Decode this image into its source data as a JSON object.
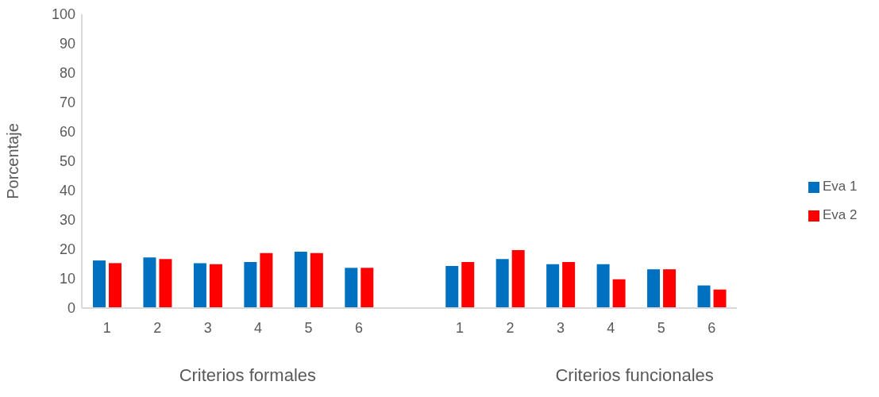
{
  "chart_data": {
    "type": "bar",
    "ylabel": "Porcentaje",
    "categories": [
      "1",
      "2",
      "3",
      "4",
      "5",
      "6",
      null,
      "1",
      "2",
      "3",
      "4",
      "5",
      "6"
    ],
    "series": [
      {
        "name": "Eva 1",
        "color": "#0070c0",
        "values": [
          16.2,
          17.2,
          15.3,
          15.7,
          19.2,
          13.7,
          null,
          14.3,
          16.7,
          14.9,
          14.9,
          13.2,
          7.7
        ]
      },
      {
        "name": "Eva 2",
        "color": "#ff0000",
        "values": [
          15.3,
          16.7,
          14.9,
          18.7,
          18.7,
          13.7,
          null,
          15.7,
          19.7,
          15.7,
          9.8,
          13.2,
          6.3
        ]
      }
    ],
    "ylim": [
      0,
      100
    ],
    "yticks": [
      0,
      10,
      20,
      30,
      40,
      50,
      60,
      70,
      80,
      90,
      100
    ],
    "grid": false,
    "legend": "right",
    "annotations": [
      "Criterios formales",
      "Criterios funcionales"
    ]
  }
}
